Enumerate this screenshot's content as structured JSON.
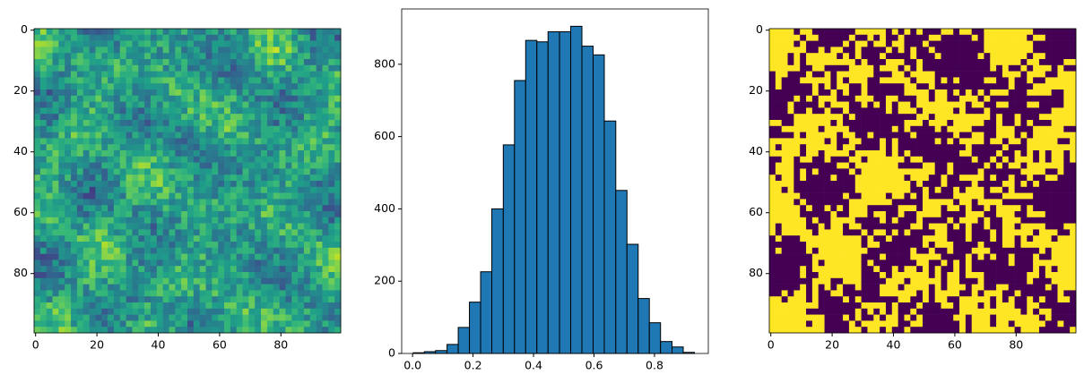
{
  "chart_data": [
    {
      "type": "heatmap",
      "colormap": "viridis",
      "xlim": [
        -0.5,
        99.5
      ],
      "ylim": [
        99.5,
        -0.5
      ],
      "xticks": [
        0,
        20,
        40,
        60,
        80
      ],
      "yticks": [
        0,
        20,
        40,
        60,
        80
      ]
    },
    {
      "type": "histogram",
      "color": "#1f77b4",
      "edgecolor": "#000000",
      "bins": [
        0.002,
        0.039,
        0.076,
        0.114,
        0.151,
        0.188,
        0.225,
        0.262,
        0.3,
        0.337,
        0.374,
        0.411,
        0.448,
        0.486,
        0.523,
        0.56,
        0.597,
        0.634,
        0.672,
        0.709,
        0.746,
        0.783,
        0.82,
        0.858,
        0.895,
        0.932
      ],
      "values": [
        2,
        5,
        8,
        25,
        72,
        142,
        226,
        400,
        577,
        755,
        866,
        862,
        890,
        890,
        905,
        850,
        826,
        643,
        451,
        302,
        152,
        85,
        33,
        18,
        3
      ],
      "xlim": [
        -0.036,
        0.978
      ],
      "ylim": [
        0,
        953
      ],
      "xticks": [
        {
          "value": 0,
          "label": "0.0"
        },
        0.2,
        0.4,
        0.6,
        0.8
      ],
      "yticks": [
        0,
        200,
        400,
        600,
        800
      ]
    },
    {
      "type": "heatmap",
      "colormap": "binary-viridis",
      "xlim": [
        -0.5,
        99.5
      ],
      "ylim": [
        99.5,
        -0.5
      ],
      "xticks": [
        0,
        20,
        40,
        60,
        80
      ],
      "yticks": [
        0,
        20,
        40,
        60,
        80
      ]
    }
  ]
}
